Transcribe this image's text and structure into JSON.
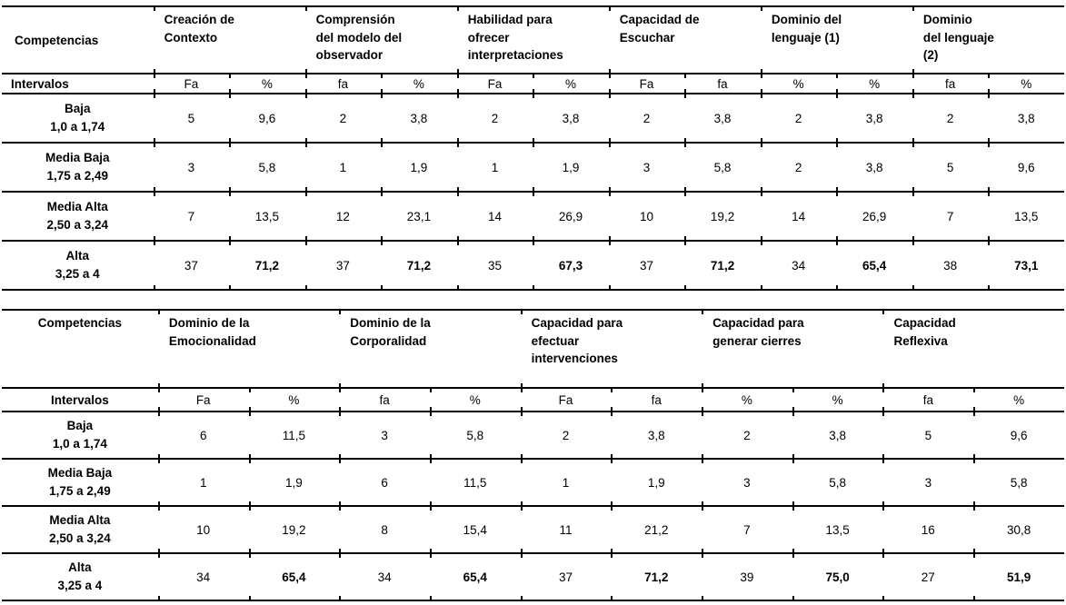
{
  "page": {
    "background": "#ffffff",
    "text_color": "#000000",
    "rule_color": "#000000"
  },
  "tables": [
    {
      "name": "competencias-table-part-1",
      "corner": "Competencias",
      "interval_header": "Intervalos",
      "groups": [
        {
          "label": "Creación de\nContexto",
          "sub": [
            "Fa",
            "%"
          ]
        },
        {
          "label": "Comprensión\ndel modelo del\nobservador",
          "sub": [
            "fa",
            "%"
          ]
        },
        {
          "label": "Habilidad para\nofrecer\ninterpretaciones",
          "sub": [
            "Fa",
            "%"
          ]
        },
        {
          "label": "Capacidad de\nEscuchar",
          "sub": [
            "Fa",
            "fa"
          ]
        },
        {
          "label": "Dominio del\nlenguaje (1)",
          "sub": [
            "%",
            "%"
          ]
        },
        {
          "label": "Dominio\ndel lenguaje\n(2)",
          "sub": [
            "fa",
            "%"
          ]
        }
      ],
      "rows": [
        {
          "label": "Baja\n1,0 a 1,74",
          "values": [
            "5",
            "9,6",
            "2",
            "3,8",
            "2",
            "3,8",
            "2",
            "3,8",
            "2",
            "3,8",
            "2",
            "3,8"
          ],
          "bold_cols": []
        },
        {
          "label": "Media Baja\n1,75 a 2,49",
          "values": [
            "3",
            "5,8",
            "1",
            "1,9",
            "1",
            "1,9",
            "3",
            "5,8",
            "2",
            "3,8",
            "5",
            "9,6"
          ],
          "bold_cols": []
        },
        {
          "label": "Media Alta\n2,50 a 3,24",
          "values": [
            "7",
            "13,5",
            "12",
            "23,1",
            "14",
            "26,9",
            "10",
            "19,2",
            "14",
            "26,9",
            "7",
            "13,5"
          ],
          "bold_cols": []
        },
        {
          "label": "Alta\n3,25 a 4",
          "values": [
            "37",
            "71,2",
            "37",
            "71,2",
            "35",
            "67,3",
            "37",
            "71,2",
            "34",
            "65,4",
            "38",
            "73,1"
          ],
          "bold_cols": [
            1,
            3,
            5,
            7,
            9,
            11
          ]
        }
      ]
    },
    {
      "name": "competencias-table-part-2",
      "corner": "Competencias",
      "interval_header": "Intervalos",
      "groups": [
        {
          "label": "Dominio de la\nEmocionalidad",
          "sub": [
            "Fa",
            "%"
          ]
        },
        {
          "label": "Dominio de la\nCorporalidad",
          "sub": [
            "fa",
            "%"
          ]
        },
        {
          "label": "Capacidad para\nefectuar\nintervenciones",
          "sub": [
            "Fa",
            "fa"
          ]
        },
        {
          "label": "Capacidad para\ngenerar cierres",
          "sub": [
            "%",
            "%"
          ]
        },
        {
          "label": "Capacidad\nReflexiva",
          "sub": [
            "fa",
            "%"
          ]
        }
      ],
      "rows": [
        {
          "label": "Baja\n1,0 a 1,74",
          "values": [
            "6",
            "11,5",
            "3",
            "5,8",
            "2",
            "3,8",
            "2",
            "3,8",
            "5",
            "9,6"
          ],
          "bold_cols": []
        },
        {
          "label": "Media Baja\n1,75 a 2,49",
          "values": [
            "1",
            "1,9",
            "6",
            "11,5",
            "1",
            "1,9",
            "3",
            "5,8",
            "3",
            "5,8"
          ],
          "bold_cols": []
        },
        {
          "label": "Media Alta\n2,50 a 3,24",
          "values": [
            "10",
            "19,2",
            "8",
            "15,4",
            "11",
            "21,2",
            "7",
            "13,5",
            "16",
            "30,8"
          ],
          "bold_cols": []
        },
        {
          "label": "Alta\n3,25 a 4",
          "values": [
            "34",
            "65,4",
            "34",
            "65,4",
            "37",
            "71,2",
            "39",
            "75,0",
            "27",
            "51,9"
          ],
          "bold_cols": [
            1,
            3,
            5,
            7,
            9
          ]
        }
      ]
    }
  ]
}
